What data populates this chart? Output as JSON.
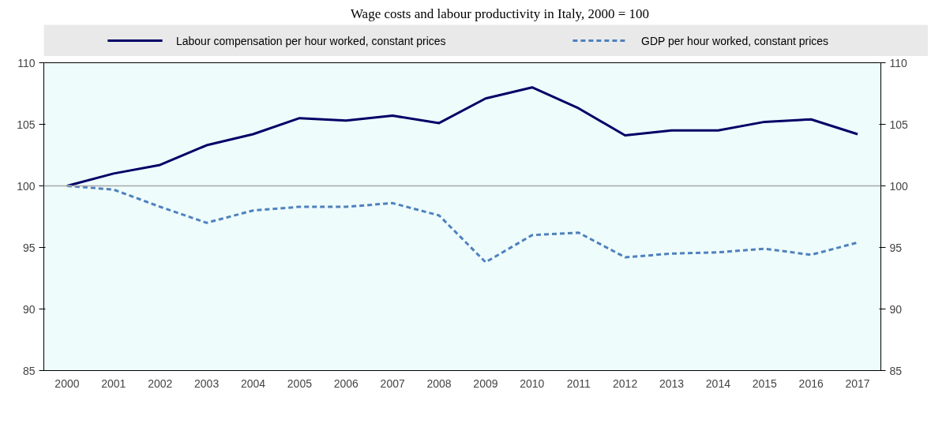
{
  "chart_data": {
    "type": "line",
    "title": "Wage costs and labour productivity in Italy, 2000 = 100",
    "categories": [
      "2000",
      "2001",
      "2002",
      "2003",
      "2004",
      "2005",
      "2006",
      "2007",
      "2008",
      "2009",
      "2010",
      "2011",
      "2012",
      "2013",
      "2014",
      "2015",
      "2016",
      "2017"
    ],
    "series": [
      {
        "name": "Labour compensation per hour worked, constant prices",
        "color": "#000066",
        "line_style": "solid",
        "values": [
          100,
          101.0,
          101.7,
          103.3,
          104.2,
          105.5,
          105.3,
          105.7,
          105.1,
          107.1,
          108.0,
          106.3,
          104.1,
          104.5,
          104.5,
          105.2,
          105.4,
          104.2
        ]
      },
      {
        "name": "GDP per hour worked, constant prices",
        "color": "#4f81bd",
        "line_style": "dashed",
        "values": [
          100,
          99.7,
          98.3,
          97.0,
          98.0,
          98.3,
          98.3,
          98.6,
          97.6,
          93.8,
          96.0,
          96.2,
          94.2,
          94.5,
          94.6,
          94.9,
          94.4,
          95.4
        ]
      }
    ],
    "ylim": [
      85,
      110
    ],
    "yticks": [
      85,
      90,
      95,
      100,
      105,
      110
    ],
    "y2lim": [
      85,
      110
    ],
    "y2ticks": [
      85,
      90,
      95,
      100,
      105,
      110
    ],
    "ref_lines": [
      {
        "axis": "y",
        "value": 100,
        "label": null,
        "color": "#a6a6a6"
      }
    ],
    "grid": false,
    "legend": "top",
    "marker": "none"
  }
}
